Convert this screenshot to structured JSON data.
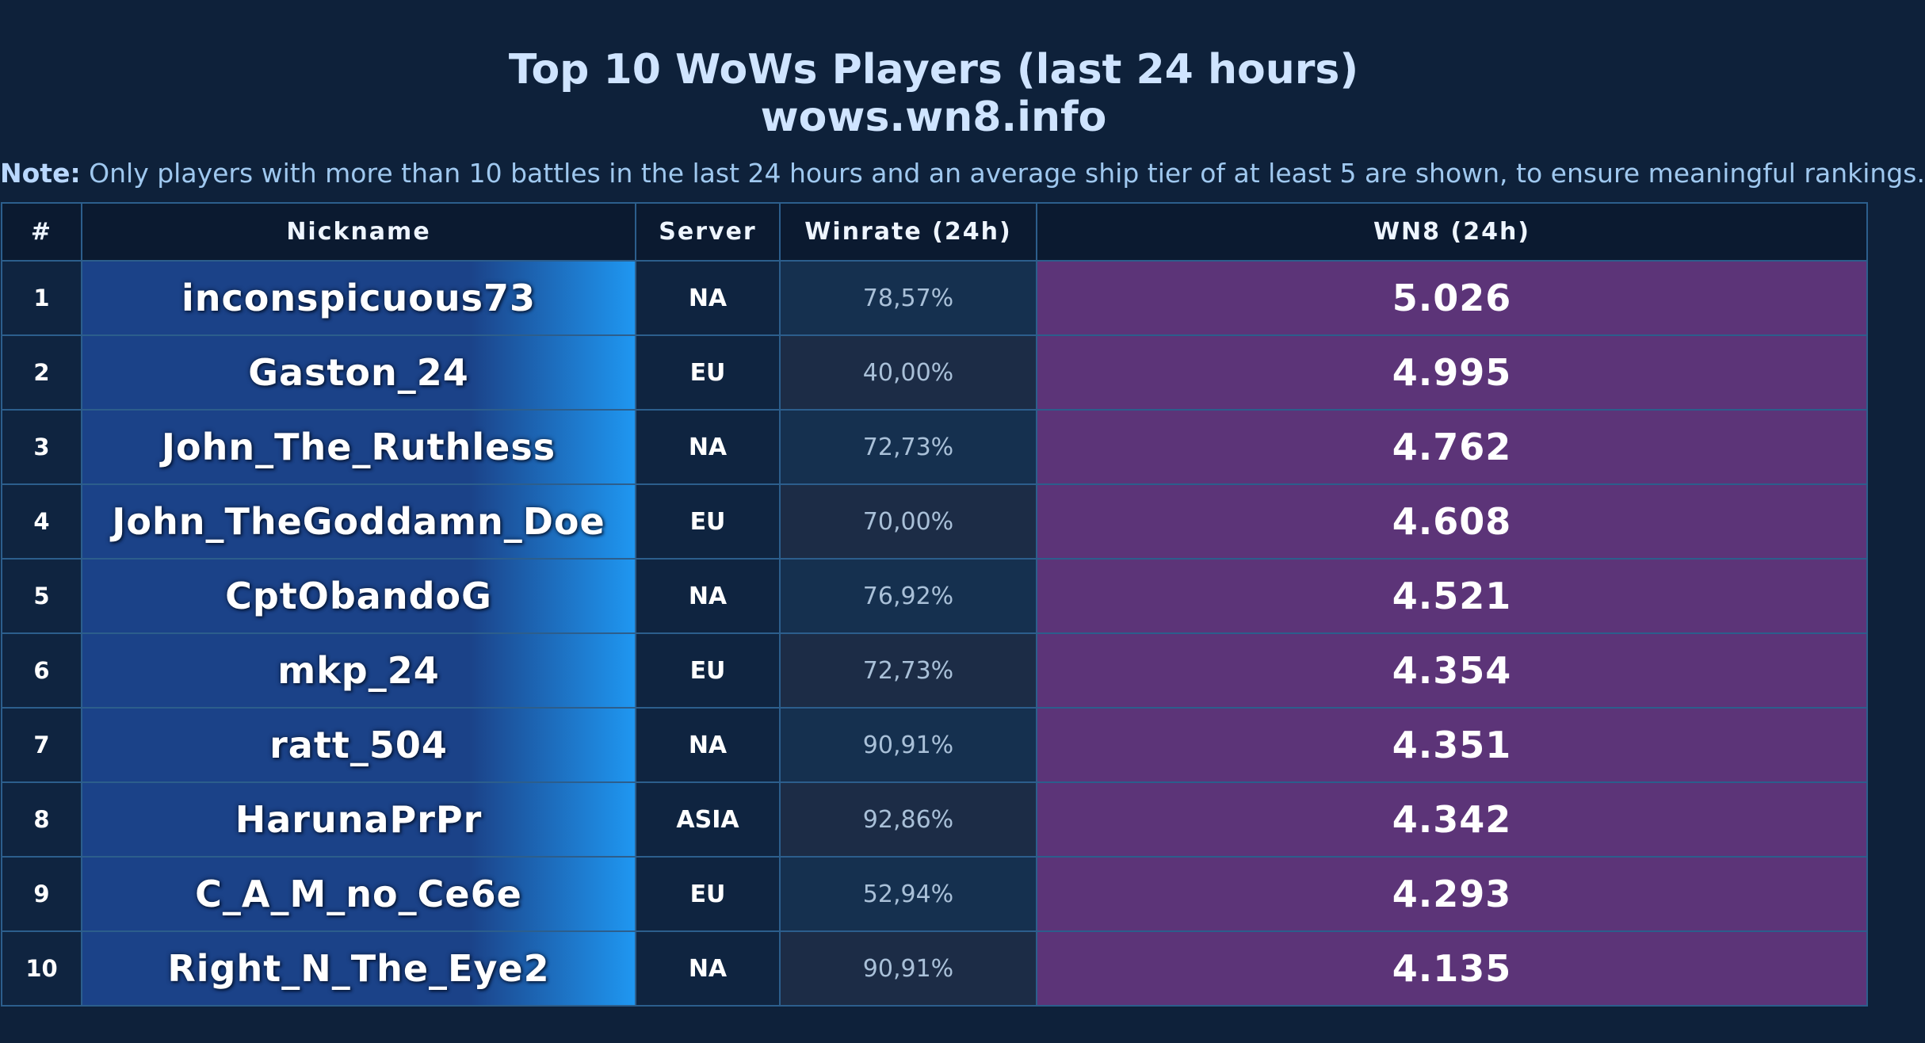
{
  "title_line1": "Top 10 WoWs Players (last 24 hours)",
  "title_line2": "wows.wn8.info",
  "note_label": "Note:",
  "note_text": "Only players with more than 10 battles in the last 24 hours and an average ship tier of at least 5 are shown, to ensure meaningful rankings.",
  "colors": {
    "background": "#0e213a",
    "nickname_gradient_start": "#1b4288",
    "nickname_gradient_end": "#1f97f1",
    "wn8_cell": "#5c3478"
  },
  "chart_data": {
    "type": "table",
    "columns": [
      "#",
      "Nickname",
      "Server",
      "Winrate (24h)",
      "WN8 (24h)"
    ],
    "rows": [
      {
        "rank": "1",
        "nickname": "inconspicuous73",
        "server": "NA",
        "winrate": "78,57%",
        "wn8": "5.026"
      },
      {
        "rank": "2",
        "nickname": "Gaston_24",
        "server": "EU",
        "winrate": "40,00%",
        "wn8": "4.995"
      },
      {
        "rank": "3",
        "nickname": "John_The_Ruthless",
        "server": "NA",
        "winrate": "72,73%",
        "wn8": "4.762"
      },
      {
        "rank": "4",
        "nickname": "John_TheGoddamn_Doe",
        "server": "EU",
        "winrate": "70,00%",
        "wn8": "4.608"
      },
      {
        "rank": "5",
        "nickname": "CptObandoG",
        "server": "NA",
        "winrate": "76,92%",
        "wn8": "4.521"
      },
      {
        "rank": "6",
        "nickname": "mkp_24",
        "server": "EU",
        "winrate": "72,73%",
        "wn8": "4.354"
      },
      {
        "rank": "7",
        "nickname": "ratt_504",
        "server": "NA",
        "winrate": "90,91%",
        "wn8": "4.351"
      },
      {
        "rank": "8",
        "nickname": "HarunaPrPr",
        "server": "ASIA",
        "winrate": "92,86%",
        "wn8": "4.342"
      },
      {
        "rank": "9",
        "nickname": "C_A_M_no_Ce6e",
        "server": "EU",
        "winrate": "52,94%",
        "wn8": "4.293"
      },
      {
        "rank": "10",
        "nickname": "Right_N_The_Eye2",
        "server": "NA",
        "winrate": "90,91%",
        "wn8": "4.135"
      }
    ]
  }
}
